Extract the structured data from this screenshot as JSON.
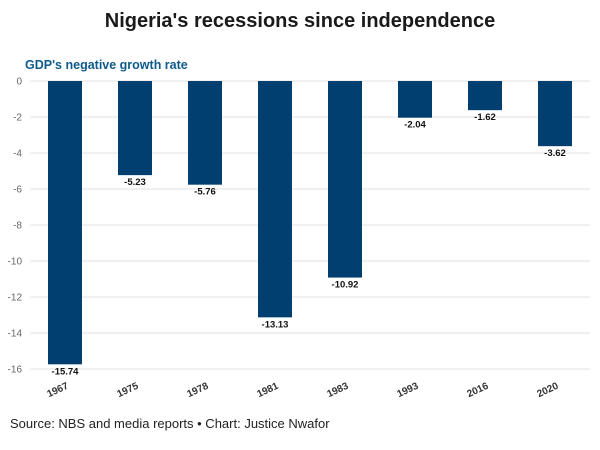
{
  "chart_data": {
    "type": "bar",
    "title": "Nigeria's recessions since independence",
    "subtitle": "GDP's negative growth rate",
    "categories": [
      "1967",
      "1975",
      "1978",
      "1981",
      "1983",
      "1993",
      "2016",
      "2020"
    ],
    "values": [
      -15.74,
      -5.23,
      -5.76,
      -13.13,
      -10.92,
      -2.04,
      -1.62,
      -3.62
    ],
    "data_labels": [
      "-15.74",
      "-5.23",
      "-5.76",
      "-13.13",
      "-10.92",
      "-2.04",
      "-1.62",
      "-3.62"
    ],
    "ylim": [
      -16,
      0
    ],
    "yticks": [
      0,
      -2,
      -4,
      -6,
      -8,
      -10,
      -12,
      -14,
      -16
    ],
    "ytick_labels": [
      "0",
      "-2",
      "-4",
      "-6",
      "-8",
      "-10",
      "-12",
      "-14",
      "-16"
    ],
    "bar_color": "#003f6f",
    "grid": true,
    "source": "Source: NBS and media reports • Chart: Justice Nwafor"
  }
}
